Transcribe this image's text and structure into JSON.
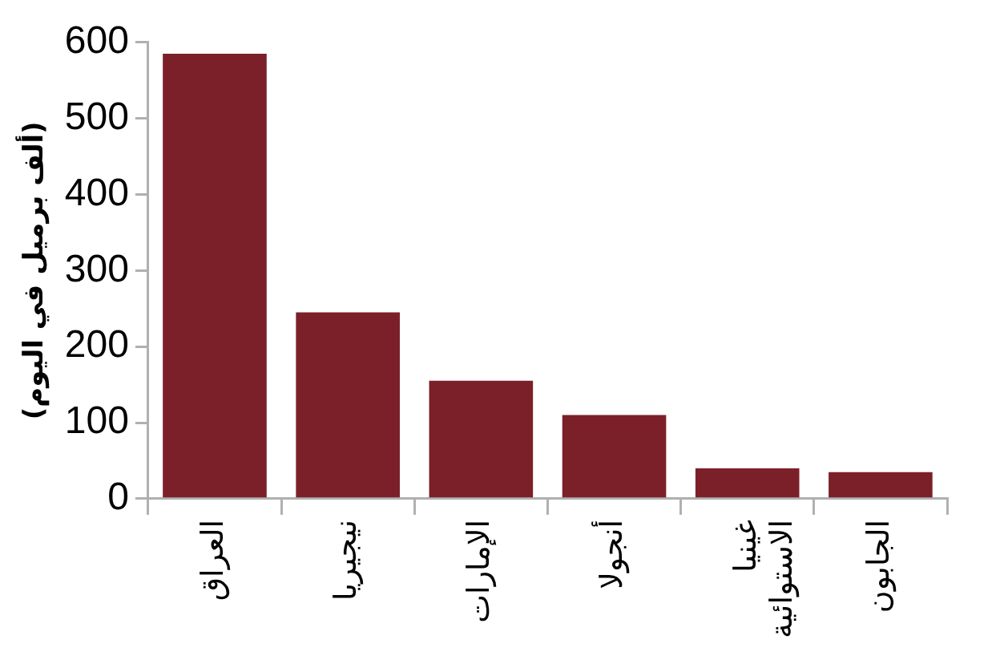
{
  "chart_data": {
    "type": "bar",
    "ylabel": "(ألف برميل في اليوم)",
    "categories": [
      "العراق",
      "نيجيريا",
      "الإمارات",
      "أنجولا",
      "غينيا الاستوائية",
      "الجابون"
    ],
    "values": [
      585,
      245,
      155,
      110,
      40,
      35
    ],
    "color": "#7b2029",
    "ylim": [
      0,
      600
    ],
    "yticks": [
      0,
      100,
      200,
      300,
      400,
      500,
      600
    ],
    "grid": false,
    "legend": false
  }
}
